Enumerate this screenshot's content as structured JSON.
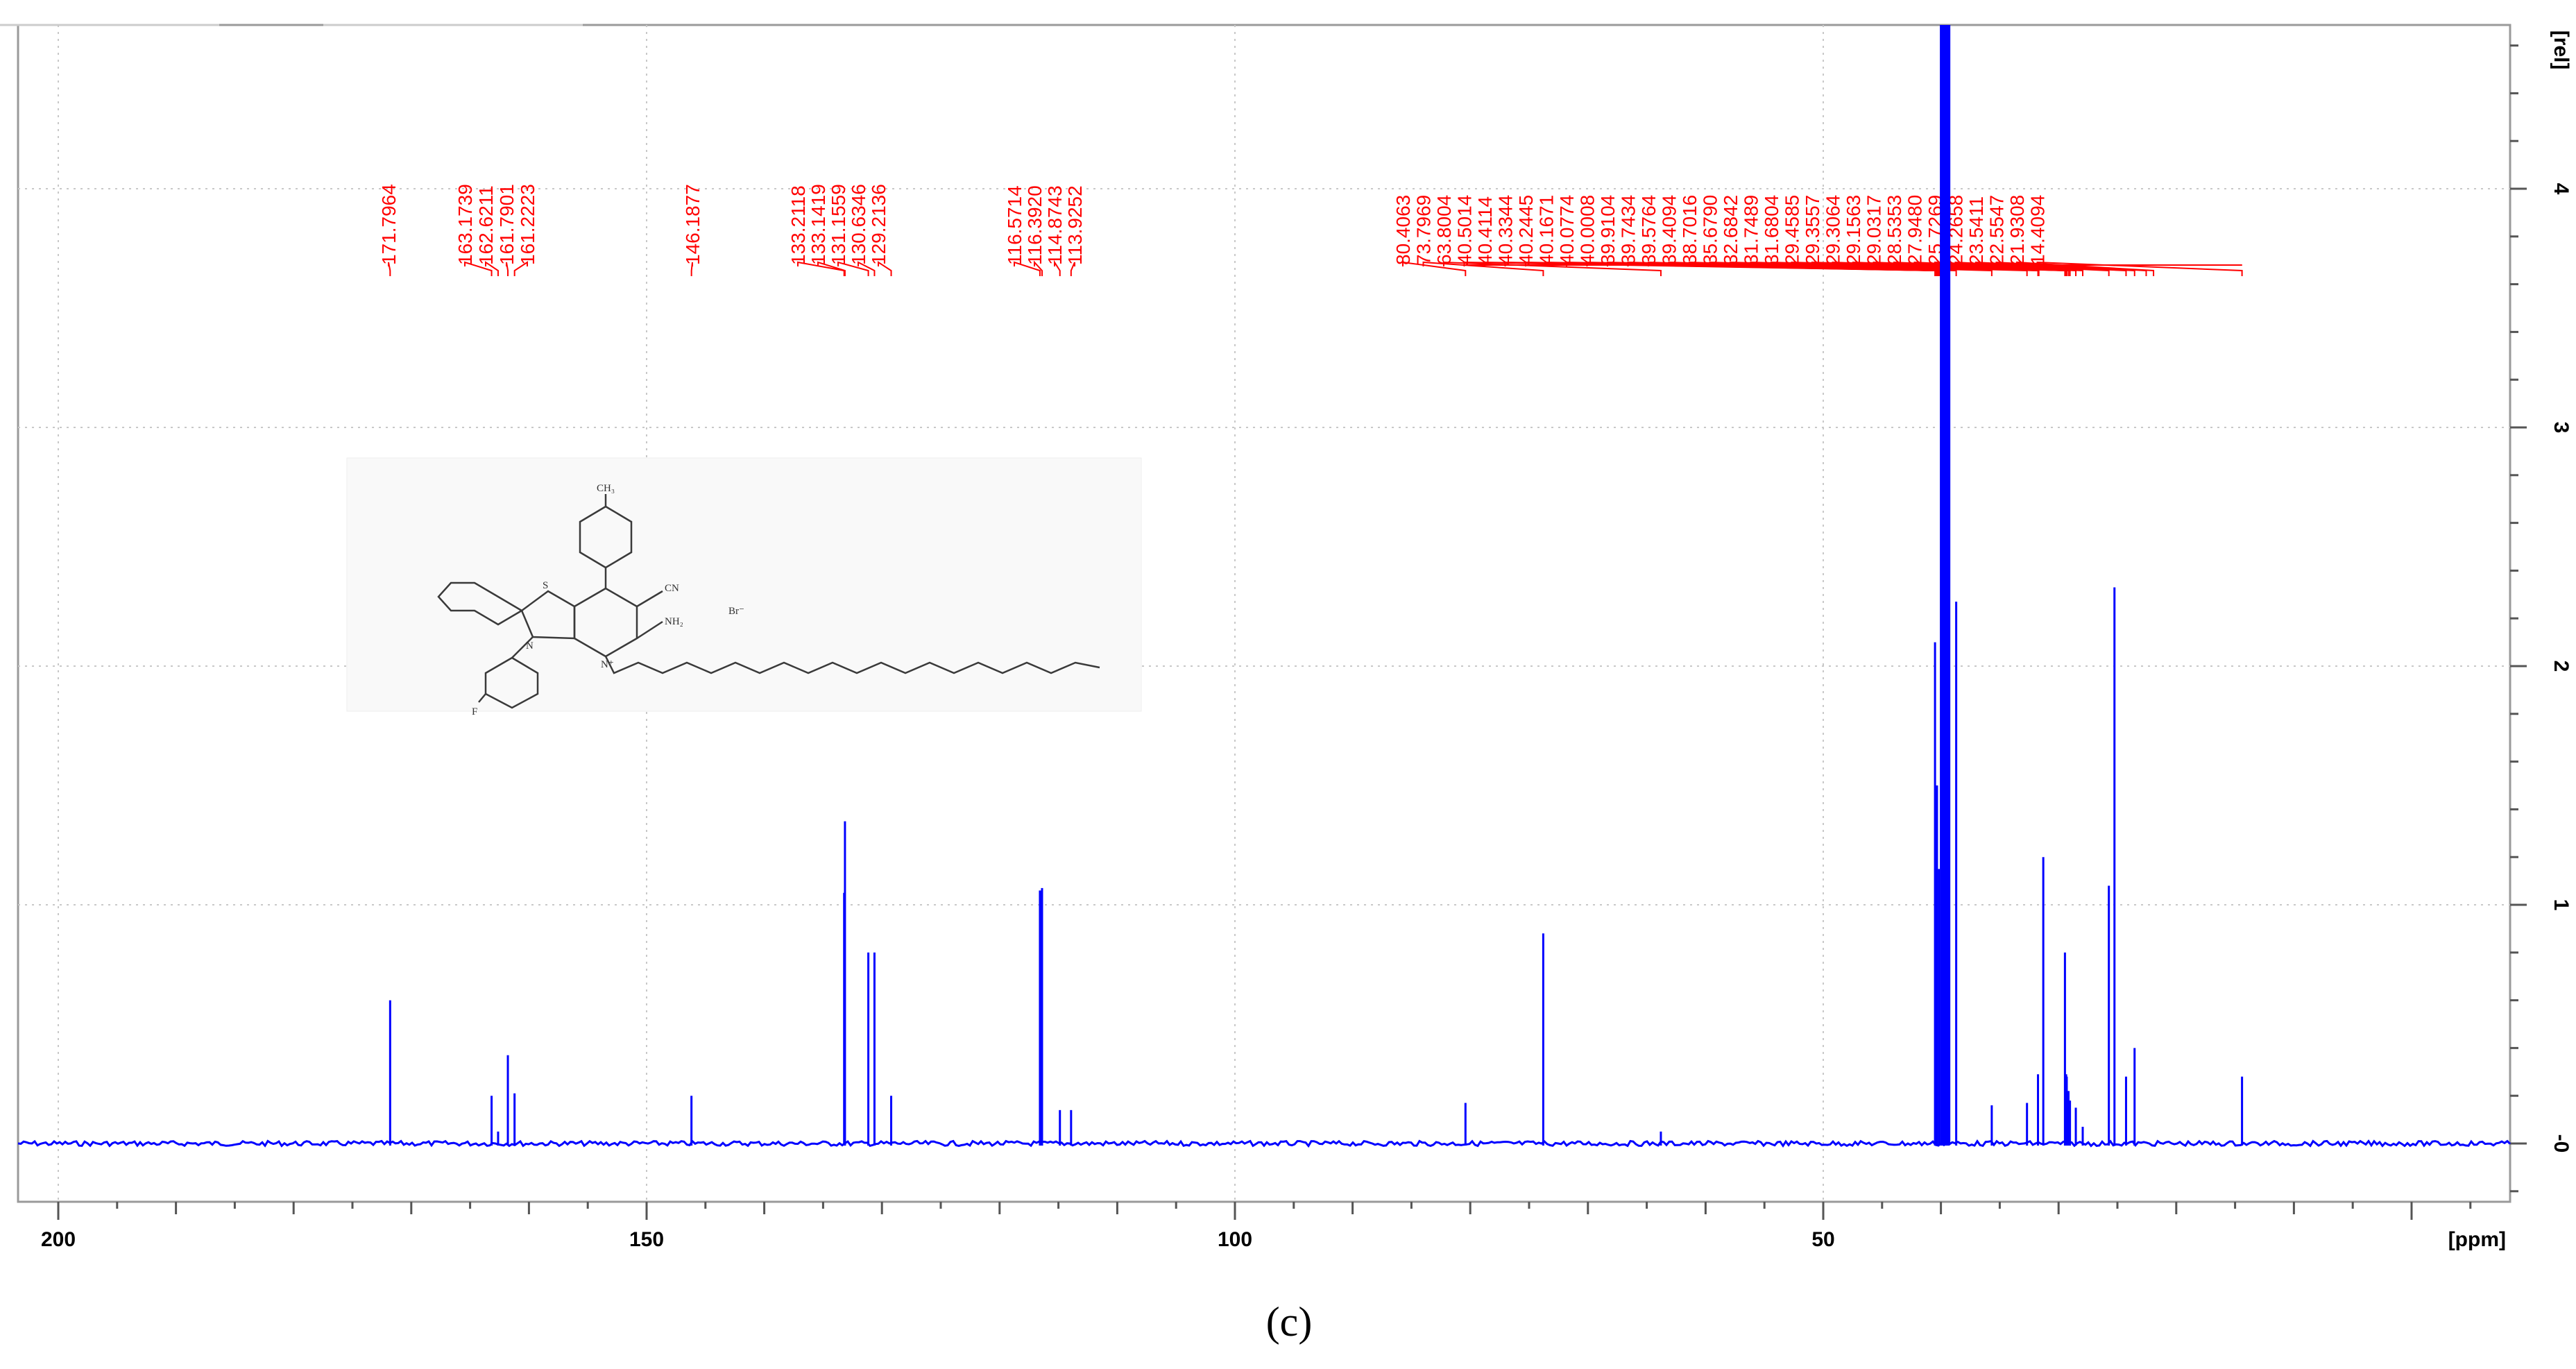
{
  "chart_data": {
    "type": "nmr-spectrum",
    "xlabel": "[ppm]",
    "ylabel": "[rel]",
    "x_range": [
      204,
      -8
    ],
    "y_range": [
      -0.25,
      4.7
    ],
    "x_ticks": [
      200,
      150,
      100,
      50
    ],
    "x_tick_labels": [
      "200",
      "150",
      "100",
      "50"
    ],
    "y_ticks": [
      0,
      1,
      2,
      3,
      4
    ],
    "y_tick_labels": [
      "-0",
      "1",
      "2",
      "3",
      "4"
    ],
    "line_color": "#0000ff",
    "label_color": "#ff0000",
    "peaks": [
      {
        "ppm": 171.7964,
        "intensity": 0.6
      },
      {
        "ppm": 163.1739,
        "intensity": 0.2
      },
      {
        "ppm": 162.6211,
        "intensity": 0.05
      },
      {
        "ppm": 161.7901,
        "intensity": 0.37
      },
      {
        "ppm": 161.2223,
        "intensity": 0.21
      },
      {
        "ppm": 146.1877,
        "intensity": 0.2
      },
      {
        "ppm": 133.2118,
        "intensity": 1.05
      },
      {
        "ppm": 133.1419,
        "intensity": 1.35
      },
      {
        "ppm": 131.1559,
        "intensity": 0.8
      },
      {
        "ppm": 130.6346,
        "intensity": 0.8
      },
      {
        "ppm": 129.2136,
        "intensity": 0.2
      },
      {
        "ppm": 116.5714,
        "intensity": 1.06
      },
      {
        "ppm": 116.392,
        "intensity": 1.07
      },
      {
        "ppm": 114.8743,
        "intensity": 0.14
      },
      {
        "ppm": 113.9252,
        "intensity": 0.14
      },
      {
        "ppm": 80.4063,
        "intensity": 0.17
      },
      {
        "ppm": 73.7969,
        "intensity": 0.88
      },
      {
        "ppm": 63.8004,
        "intensity": 0.05
      },
      {
        "ppm": 40.5014,
        "intensity": 2.1
      },
      {
        "ppm": 40.3344,
        "intensity": 1.5
      },
      {
        "ppm": 40.1671,
        "intensity": 1.15
      },
      {
        "ppm": 40.0008,
        "intensity": 4.7
      },
      {
        "ppm": 39.8341,
        "intensity": 4.7
      },
      {
        "ppm": 39.6673,
        "intensity": 2.1
      },
      {
        "ppm": 39.5006,
        "intensity": 1.2
      },
      {
        "ppm": 39.3339,
        "intensity": 0.7
      },
      {
        "ppm": 38.7016,
        "intensity": 2.27
      },
      {
        "ppm": 35.679,
        "intensity": 0.16
      },
      {
        "ppm": 32.6842,
        "intensity": 0.17
      },
      {
        "ppm": 31.7489,
        "intensity": 0.29
      },
      {
        "ppm": 31.3,
        "intensity": 1.2
      },
      {
        "ppm": 29.4585,
        "intensity": 0.8
      },
      {
        "ppm": 29.3557,
        "intensity": 0.29
      },
      {
        "ppm": 29.3064,
        "intensity": 0.28
      },
      {
        "ppm": 29.1563,
        "intensity": 0.22
      },
      {
        "ppm": 29.0317,
        "intensity": 0.18
      },
      {
        "ppm": 28.5353,
        "intensity": 0.15
      },
      {
        "ppm": 27.948,
        "intensity": 0.07
      },
      {
        "ppm": 25.7269,
        "intensity": 1.08
      },
      {
        "ppm": 25.25,
        "intensity": 2.33
      },
      {
        "ppm": 24.2658,
        "intensity": 0.28
      },
      {
        "ppm": 23.5411,
        "intensity": 0.4
      },
      {
        "ppm": 14.4094,
        "intensity": 0.28
      }
    ],
    "peak_labels": [
      {
        "text": "171.7964",
        "ppm": 171.7964,
        "group": 1
      },
      {
        "text": "163.1739",
        "ppm": 163.1739,
        "group": 2
      },
      {
        "text": "162.6211",
        "ppm": 162.6211,
        "group": 2
      },
      {
        "text": "161.7901",
        "ppm": 161.7901,
        "group": 2
      },
      {
        "text": "161.2223",
        "ppm": 161.2223,
        "group": 2
      },
      {
        "text": "146.1877",
        "ppm": 146.1877,
        "group": 3
      },
      {
        "text": "133.2118",
        "ppm": 133.2118,
        "group": 4
      },
      {
        "text": "133.1419",
        "ppm": 133.1419,
        "group": 4
      },
      {
        "text": "131.1559",
        "ppm": 131.1559,
        "group": 4
      },
      {
        "text": "130.6346",
        "ppm": 130.6346,
        "group": 4
      },
      {
        "text": "129.2136",
        "ppm": 129.2136,
        "group": 4
      },
      {
        "text": "116.5714",
        "ppm": 116.5714,
        "group": 5
      },
      {
        "text": "116.3920",
        "ppm": 116.392,
        "group": 5
      },
      {
        "text": "114.8743",
        "ppm": 114.8743,
        "group": 5
      },
      {
        "text": "113.9252",
        "ppm": 113.9252,
        "group": 5
      },
      {
        "text": "80.4063",
        "ppm": 80.4063,
        "group": 6
      },
      {
        "text": "73.7969",
        "ppm": 73.7969,
        "group": 6
      },
      {
        "text": "63.8004",
        "ppm": 63.8004,
        "group": 6
      },
      {
        "text": "40.5014",
        "ppm": 40.5014,
        "group": 6
      },
      {
        "text": "40.4114",
        "ppm": 40.4114,
        "group": 6
      },
      {
        "text": "40.3344",
        "ppm": 40.3344,
        "group": 6
      },
      {
        "text": "40.2445",
        "ppm": 40.2445,
        "group": 6
      },
      {
        "text": "40.1671",
        "ppm": 40.1671,
        "group": 6
      },
      {
        "text": "40.0774",
        "ppm": 40.0774,
        "group": 6
      },
      {
        "text": "40.0008",
        "ppm": 40.0008,
        "group": 6
      },
      {
        "text": "39.9104",
        "ppm": 39.9104,
        "group": 6
      },
      {
        "text": "39.7434",
        "ppm": 39.7434,
        "group": 6
      },
      {
        "text": "39.5764",
        "ppm": 39.5764,
        "group": 6
      },
      {
        "text": "39.4094",
        "ppm": 39.4094,
        "group": 6
      },
      {
        "text": "38.7016",
        "ppm": 38.7016,
        "group": 6
      },
      {
        "text": "35.6790",
        "ppm": 35.679,
        "group": 6
      },
      {
        "text": "32.6842",
        "ppm": 32.6842,
        "group": 6
      },
      {
        "text": "31.7489",
        "ppm": 31.7489,
        "group": 6
      },
      {
        "text": "31.6804",
        "ppm": 31.6804,
        "group": 6
      },
      {
        "text": "29.4585",
        "ppm": 29.4585,
        "group": 6
      },
      {
        "text": "29.3557",
        "ppm": 29.3557,
        "group": 6
      },
      {
        "text": "29.3064",
        "ppm": 29.3064,
        "group": 6
      },
      {
        "text": "29.1563",
        "ppm": 29.1563,
        "group": 6
      },
      {
        "text": "29.0317",
        "ppm": 29.0317,
        "group": 6
      },
      {
        "text": "28.5353",
        "ppm": 28.5353,
        "group": 6
      },
      {
        "text": "27.9480",
        "ppm": 27.948,
        "group": 6
      },
      {
        "text": "25.7269",
        "ppm": 25.7269,
        "group": 6
      },
      {
        "text": "24.2658",
        "ppm": 24.2658,
        "group": 6
      },
      {
        "text": "23.5411",
        "ppm": 23.5411,
        "group": 6
      },
      {
        "text": "22.5547",
        "ppm": 22.5547,
        "group": 6
      },
      {
        "text": "21.9308",
        "ppm": 21.9308,
        "group": 6
      },
      {
        "text": "14.4094",
        "ppm": 14.4094,
        "group": 6
      }
    ],
    "solvent_band": {
      "from_ppm": 40.05,
      "to_ppm": 39.2
    },
    "caption": "(c)"
  },
  "structure_labels": {
    "ch3": "CH₃",
    "s": "S",
    "n_ring": "N",
    "cn": "CN",
    "nh2": "NH₂",
    "n_plus": "N⁺",
    "br": "Br⁻",
    "f": "F"
  }
}
